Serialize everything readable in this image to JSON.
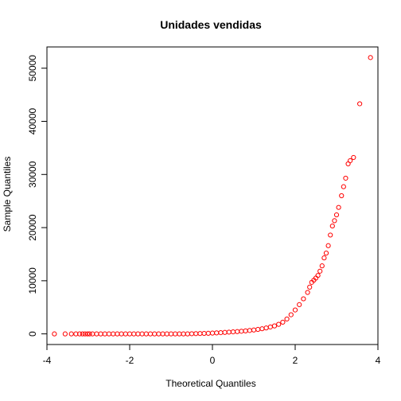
{
  "chart_data": {
    "type": "scatter",
    "title": "Unidades vendidas",
    "xlabel": "Theoretical Quantiles",
    "ylabel": "Sample Quantiles",
    "xlim": [
      -4.0,
      4.0
    ],
    "ylim": [
      -2000,
      54000
    ],
    "xticks": [
      -4,
      -2,
      0,
      2,
      4
    ],
    "yticks": [
      0,
      10000,
      20000,
      30000,
      40000,
      50000
    ],
    "xtick_labels": [
      "-4",
      "-2",
      "0",
      "2",
      "4"
    ],
    "ytick_labels": [
      "0",
      "10000",
      "20000",
      "30000",
      "40000",
      "50000"
    ],
    "grid": false,
    "legend": "none",
    "marker": "open-circle",
    "point_color": "#ff0000",
    "points": [
      [
        -3.82,
        0
      ],
      [
        -3.56,
        0
      ],
      [
        -3.41,
        0
      ],
      [
        -3.3,
        0
      ],
      [
        -3.21,
        0
      ],
      [
        -3.14,
        0
      ],
      [
        -3.08,
        0
      ],
      [
        -3.02,
        0
      ],
      [
        -2.97,
        0
      ],
      [
        -2.9,
        0
      ],
      [
        -2.8,
        0
      ],
      [
        -2.7,
        0
      ],
      [
        -2.6,
        0
      ],
      [
        -2.5,
        0
      ],
      [
        -2.4,
        0
      ],
      [
        -2.3,
        0
      ],
      [
        -2.2,
        0
      ],
      [
        -2.1,
        0
      ],
      [
        -2.0,
        0
      ],
      [
        -1.9,
        0
      ],
      [
        -1.8,
        0
      ],
      [
        -1.7,
        0
      ],
      [
        -1.6,
        0
      ],
      [
        -1.5,
        0
      ],
      [
        -1.4,
        0
      ],
      [
        -1.3,
        0
      ],
      [
        -1.2,
        0
      ],
      [
        -1.1,
        0
      ],
      [
        -1.0,
        0
      ],
      [
        -0.9,
        0
      ],
      [
        -0.8,
        0
      ],
      [
        -0.7,
        0
      ],
      [
        -0.6,
        0
      ],
      [
        -0.5,
        30
      ],
      [
        -0.4,
        50
      ],
      [
        -0.3,
        70
      ],
      [
        -0.2,
        90
      ],
      [
        -0.1,
        110
      ],
      [
        0.0,
        150
      ],
      [
        0.1,
        190
      ],
      [
        0.2,
        230
      ],
      [
        0.3,
        280
      ],
      [
        0.4,
        330
      ],
      [
        0.5,
        380
      ],
      [
        0.6,
        430
      ],
      [
        0.7,
        490
      ],
      [
        0.8,
        560
      ],
      [
        0.9,
        640
      ],
      [
        1.0,
        730
      ],
      [
        1.1,
        840
      ],
      [
        1.2,
        970
      ],
      [
        1.3,
        1120
      ],
      [
        1.4,
        1300
      ],
      [
        1.5,
        1500
      ],
      [
        1.6,
        1800
      ],
      [
        1.7,
        2200
      ],
      [
        1.8,
        2800
      ],
      [
        1.9,
        3600
      ],
      [
        2.0,
        4500
      ],
      [
        2.1,
        5500
      ],
      [
        2.2,
        6600
      ],
      [
        2.3,
        7800
      ],
      [
        2.35,
        8800
      ],
      [
        2.4,
        9700
      ],
      [
        2.45,
        10100
      ],
      [
        2.5,
        10500
      ],
      [
        2.55,
        11000
      ],
      [
        2.6,
        11800
      ],
      [
        2.65,
        12800
      ],
      [
        2.7,
        14300
      ],
      [
        2.75,
        15200
      ],
      [
        2.8,
        16600
      ],
      [
        2.85,
        18600
      ],
      [
        2.9,
        20300
      ],
      [
        2.95,
        21300
      ],
      [
        3.0,
        22400
      ],
      [
        3.05,
        23800
      ],
      [
        3.12,
        26000
      ],
      [
        3.17,
        27700
      ],
      [
        3.22,
        29300
      ],
      [
        3.28,
        32000
      ],
      [
        3.33,
        32600
      ],
      [
        3.41,
        33200
      ],
      [
        3.56,
        43300
      ],
      [
        3.82,
        52000
      ]
    ]
  }
}
